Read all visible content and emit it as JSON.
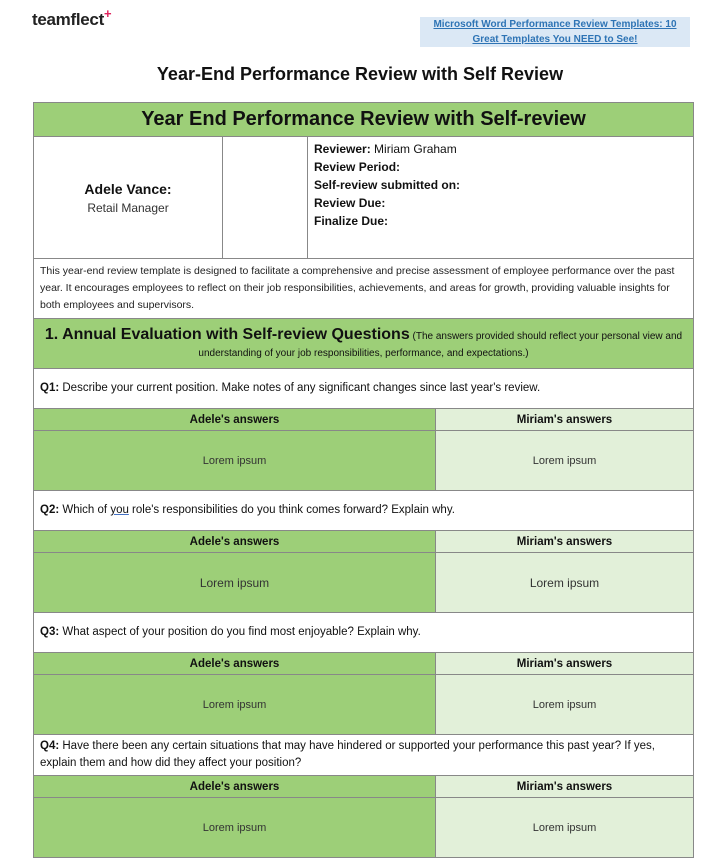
{
  "header": {
    "logo": "teamflect",
    "link_line1": "Microsoft Word Performance Review Templates: 10",
    "link_line2": "Great Templates You NEED to See!"
  },
  "title": "Year-End Performance Review with Self Review",
  "doc": {
    "banner": "Year End Performance Review with Self-review",
    "employee_name": "Adele Vance:",
    "employee_role": "Retail Manager",
    "reviewer_label": "Reviewer:",
    "reviewer_value": "Miriam Graham",
    "fields": [
      "Review Period:",
      "Self-review submitted on:",
      "Review Due:",
      "Finalize Due:"
    ],
    "description": "This year-end review template is designed to facilitate a comprehensive and precise assessment of employee performance over the past year. It encourages employees to reflect on their job responsibilities, achievements, and areas for growth, providing valuable insights for both employees and supervisors.",
    "section_title": "1. Annual Evaluation with Self-review Questions",
    "section_note": "(The answers provided should reflect your personal view and understanding of your job responsibilities, performance, and expectations.)",
    "answers_left": "Adele's answers",
    "answers_right": "Miriam's answers",
    "questions": [
      {
        "num": "Q1:",
        "text": "Describe your current position. Make notes of any significant changes since last year's review.",
        "left": "Lorem ipsum",
        "right": "Lorem ipsum"
      },
      {
        "num": "Q2:",
        "text_a": "Which of ",
        "text_ul": "you",
        "text_b": " role's responsibilities do you think comes forward? Explain why.",
        "left": "Lorem ipsum",
        "right": "Lorem ipsum"
      },
      {
        "num": "Q3:",
        "text": "What aspect of your position do you find most enjoyable? Explain why.",
        "left": "Lorem ipsum",
        "right": "Lorem ipsum"
      },
      {
        "num": "Q4:",
        "text": "Have there been any certain situations that may have hindered or supported your performance this past year?  If yes, explain them and how did they affect your position?",
        "left": "Lorem ipsum",
        "right": "Lorem ipsum"
      }
    ]
  },
  "colors": {
    "green": "#9dcf78",
    "light_green": "#e2f0d9",
    "link": "#2e74b5",
    "logo_plus": "#e0245e"
  }
}
